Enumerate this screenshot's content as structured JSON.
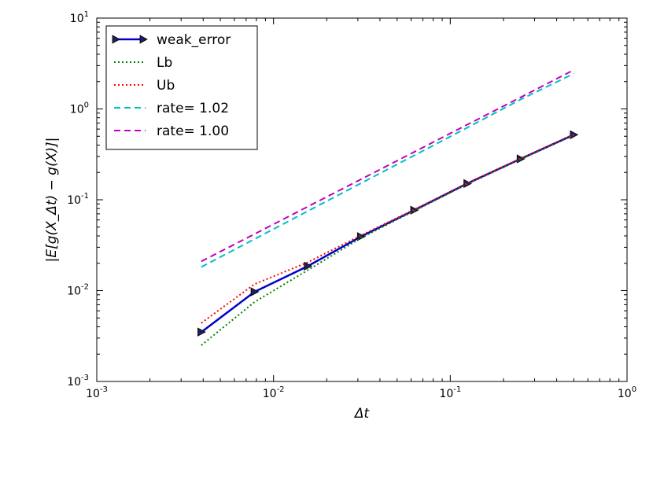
{
  "chart_data": {
    "type": "line",
    "title": "",
    "xlabel": "Δt",
    "ylabel": "|E[g(X_Δt) − g(X)]|",
    "xscale": "log",
    "yscale": "log",
    "xlim": [
      0.001,
      1
    ],
    "ylim": [
      0.001,
      10
    ],
    "grid": false,
    "legend_position": "top-left",
    "x_ticks": [
      {
        "value": 0.001,
        "base": "10",
        "exp": "-3"
      },
      {
        "value": 0.01,
        "base": "10",
        "exp": "-2"
      },
      {
        "value": 0.1,
        "base": "10",
        "exp": "-1"
      },
      {
        "value": 1,
        "base": "10",
        "exp": "0"
      }
    ],
    "y_ticks": [
      {
        "value": 0.001,
        "base": "10",
        "exp": "-3"
      },
      {
        "value": 0.01,
        "base": "10",
        "exp": "-2"
      },
      {
        "value": 0.1,
        "base": "10",
        "exp": "-1"
      },
      {
        "value": 1,
        "base": "10",
        "exp": "0"
      },
      {
        "value": 10,
        "base": "10",
        "exp": "1"
      }
    ],
    "x": [
      0.00390625,
      0.0078125,
      0.015625,
      0.03125,
      0.0625,
      0.125,
      0.25,
      0.5
    ],
    "series": [
      {
        "name": "weak_error",
        "color": "#0000cc",
        "style": "solid",
        "marker": "triangle-right",
        "values": [
          0.0035,
          0.0097,
          0.0186,
          0.0393,
          0.0768,
          0.151,
          0.282,
          0.52
        ]
      },
      {
        "name": "Lb",
        "color": "#008000",
        "style": "dotted",
        "marker": "none",
        "values": [
          0.0025,
          0.0075,
          0.0168,
          0.038,
          0.0755,
          0.149,
          0.279,
          0.515
        ]
      },
      {
        "name": "Ub",
        "color": "#ff0000",
        "style": "dotted",
        "marker": "none",
        "values": [
          0.0044,
          0.0118,
          0.0205,
          0.0405,
          0.078,
          0.153,
          0.285,
          0.525
        ]
      },
      {
        "name": "rate= 1.02",
        "color": "#00bfbf",
        "style": "dashed",
        "marker": "none",
        "values": [
          0.0182,
          0.037,
          0.075,
          0.152,
          0.308,
          0.624,
          1.27,
          2.45
        ]
      },
      {
        "name": "rate= 1.00",
        "color": "#bf00bf",
        "style": "dashed",
        "marker": "none",
        "values": [
          0.021,
          0.042,
          0.084,
          0.168,
          0.336,
          0.672,
          1.34,
          2.69
        ]
      }
    ]
  }
}
